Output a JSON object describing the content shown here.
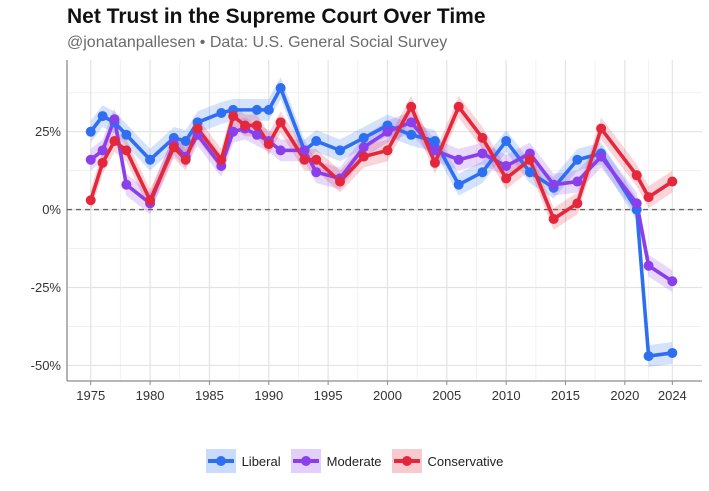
{
  "header": {
    "title": "Net Trust in the Supreme Court Over Time",
    "subtitle": "@jonatanpallesen • Data: U.S. General Social Survey"
  },
  "chart_data": {
    "type": "line",
    "title": "Net Trust in the Supreme Court Over Time",
    "subtitle": "@jonatanpallesen • Data: U.S. General Social Survey",
    "xlabel": "",
    "ylabel": "",
    "x_ticks": [
      1975,
      1980,
      1985,
      1990,
      1995,
      2000,
      2005,
      2010,
      2015,
      2020,
      2024
    ],
    "y_ticks": [
      -50,
      -25,
      0,
      25
    ],
    "y_tick_labels": [
      "-50%",
      "-25%",
      "0%",
      "25%"
    ],
    "xlim": [
      1973,
      2026.5
    ],
    "ylim": [
      -55,
      48
    ],
    "grid": true,
    "zero_line": true,
    "legend_position": "bottom",
    "ribbon_halfwidth": 3.5,
    "series": [
      {
        "name": "Liberal",
        "color": "#2E6FF2",
        "x": [
          1975,
          1976,
          1977,
          1978,
          1980,
          1982,
          1983,
          1984,
          1986,
          1987,
          1989,
          1990,
          1991,
          1993,
          1994,
          1996,
          1998,
          2000,
          2002,
          2004,
          2006,
          2008,
          2010,
          2012,
          2014,
          2016,
          2018,
          2021,
          2022,
          2024
        ],
        "y": [
          25,
          30,
          28,
          24,
          16,
          23,
          22,
          28,
          31,
          32,
          32,
          32,
          39,
          19,
          22,
          19,
          23,
          27,
          24,
          22,
          8,
          12,
          22,
          12,
          7,
          16,
          18,
          0,
          -47,
          -46
        ]
      },
      {
        "name": "Moderate",
        "color": "#8A3FEA",
        "x": [
          1975,
          1976,
          1977,
          1978,
          1980,
          1982,
          1983,
          1984,
          1986,
          1987,
          1988,
          1989,
          1990,
          1991,
          1993,
          1994,
          1996,
          1998,
          2000,
          2002,
          2004,
          2006,
          2008,
          2010,
          2012,
          2014,
          2016,
          2018,
          2021,
          2022,
          2024
        ],
        "y": [
          16,
          19,
          29,
          8,
          2,
          21,
          17,
          24,
          14,
          25,
          26,
          24,
          22,
          19,
          19,
          12,
          10,
          20,
          25,
          28,
          19,
          16,
          18,
          14,
          18,
          8,
          9,
          17,
          2,
          -18,
          -23
        ]
      },
      {
        "name": "Conservative",
        "color": "#E3283E",
        "x": [
          1975,
          1976,
          1977,
          1978,
          1980,
          1982,
          1983,
          1984,
          1986,
          1987,
          1988,
          1989,
          1990,
          1991,
          1993,
          1994,
          1996,
          1998,
          2000,
          2002,
          2004,
          2006,
          2008,
          2010,
          2012,
          2014,
          2016,
          2018,
          2021,
          2022,
          2024
        ],
        "y": [
          3,
          15,
          22,
          19,
          3,
          20,
          16,
          26,
          16,
          30,
          27,
          27,
          21,
          28,
          16,
          16,
          9,
          17,
          19,
          33,
          15,
          33,
          23,
          10,
          16,
          -3,
          2,
          26,
          11,
          4,
          9
        ]
      }
    ]
  }
}
